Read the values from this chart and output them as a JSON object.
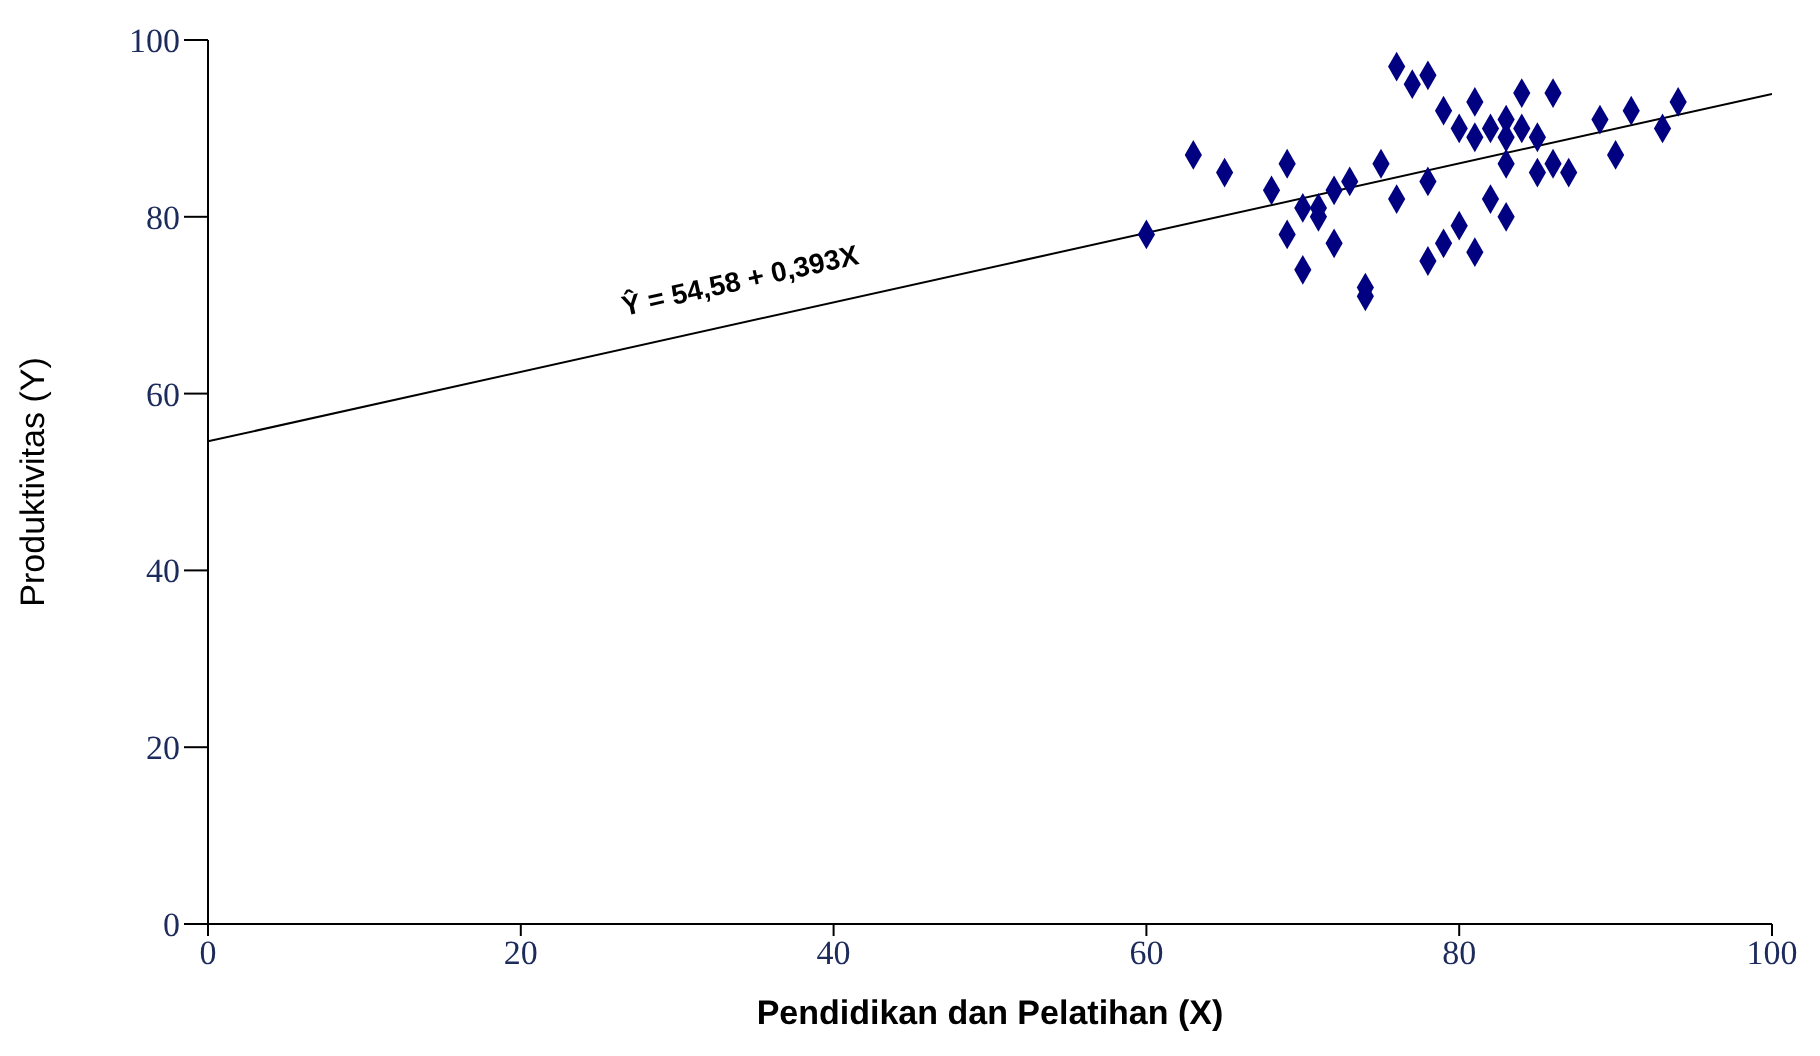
{
  "chart_data": {
    "type": "scatter",
    "xlabel": "Pendidikan dan Pelatihan (X)",
    "ylabel": "Produktivitas (Y)",
    "xlim": [
      0,
      100
    ],
    "xticks": [
      0,
      20,
      40,
      60,
      80,
      100
    ],
    "ylim": [
      0,
      100
    ],
    "yticks": [
      0,
      20,
      40,
      60,
      80,
      100
    ],
    "annotations": [
      "Ŷ = 54,58 + 0,393X"
    ],
    "series": [
      {
        "color": "#000080",
        "marker": "diamond",
        "x": [
          60,
          63,
          65,
          68,
          69,
          69,
          70,
          70,
          71,
          71,
          72,
          72,
          73,
          74,
          74,
          75,
          76,
          76,
          77,
          78,
          78,
          78,
          79,
          79,
          80,
          80,
          81,
          81,
          81,
          82,
          82,
          83,
          83,
          83,
          83,
          84,
          84,
          85,
          85,
          86,
          86,
          87,
          89,
          90,
          91,
          93,
          94
        ],
        "values": [
          78,
          87,
          85,
          83,
          86,
          78,
          74,
          81,
          81,
          80,
          77,
          83,
          84,
          72,
          71,
          86,
          82,
          97,
          95,
          96,
          84,
          75,
          77,
          92,
          90,
          79,
          93,
          89,
          76,
          90,
          82,
          91,
          89,
          86,
          80,
          94,
          90,
          89,
          85,
          94,
          86,
          85,
          91,
          87,
          92,
          90,
          93
        ]
      },
      {
        "type": "line",
        "color": "#000000",
        "marker": "none",
        "line_style": "solid",
        "x": [
          0,
          100
        ],
        "values": [
          54.6,
          93.9
        ]
      }
    ]
  }
}
